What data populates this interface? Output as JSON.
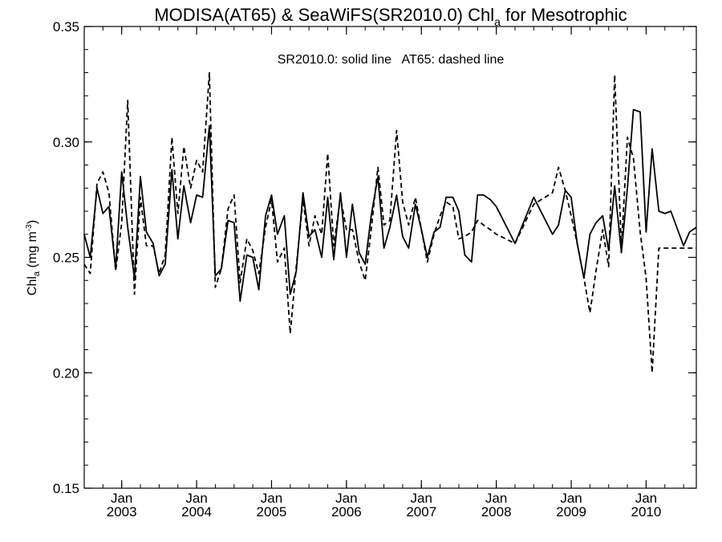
{
  "chart_data": {
    "type": "line",
    "title": {
      "prefix": "MODISA(AT65) & SeaWiFS(SR2010.0)  Chl",
      "subscript": "a",
      "suffix": " for Mesotrophic"
    },
    "annotation": "SR2010.0: solid line   AT65: dashed line",
    "ylabel": {
      "main": "Chl",
      "subscript": "a",
      "units": " (mg m",
      "units_sup": "-3",
      "units_close": ")"
    },
    "ylim": [
      0.15,
      0.35
    ],
    "yticks": [
      0.15,
      0.2,
      0.25,
      0.3,
      0.35
    ],
    "ytick_labels": [
      "0.15",
      "0.20",
      "0.25",
      "0.30",
      "0.35"
    ],
    "xlim": [
      2002.5,
      2010.67
    ],
    "xticks": [
      {
        "value": 2003.0,
        "month": "Jan",
        "year": "2003"
      },
      {
        "value": 2004.0,
        "month": "Jan",
        "year": "2004"
      },
      {
        "value": 2005.0,
        "month": "Jan",
        "year": "2005"
      },
      {
        "value": 2006.0,
        "month": "Jan",
        "year": "2006"
      },
      {
        "value": 2007.0,
        "month": "Jan",
        "year": "2007"
      },
      {
        "value": 2008.0,
        "month": "Jan",
        "year": "2008"
      },
      {
        "value": 2009.0,
        "month": "Jan",
        "year": "2009"
      },
      {
        "value": 2010.0,
        "month": "Jan",
        "year": "2010"
      }
    ],
    "grid": false,
    "series": [
      {
        "name": "SR2010.0",
        "style": "solid",
        "color": "#000000",
        "x": [
          2002.5,
          2002.58,
          2002.67,
          2002.75,
          2002.83,
          2002.92,
          2003.0,
          2003.08,
          2003.17,
          2003.25,
          2003.33,
          2003.42,
          2003.5,
          2003.58,
          2003.67,
          2003.75,
          2003.83,
          2003.92,
          2004.0,
          2004.08,
          2004.17,
          2004.25,
          2004.33,
          2004.42,
          2004.5,
          2004.58,
          2004.67,
          2004.75,
          2004.83,
          2004.92,
          2005.0,
          2005.08,
          2005.17,
          2005.25,
          2005.33,
          2005.42,
          2005.5,
          2005.58,
          2005.67,
          2005.75,
          2005.83,
          2005.92,
          2006.0,
          2006.08,
          2006.17,
          2006.25,
          2006.33,
          2006.42,
          2006.5,
          2006.58,
          2006.67,
          2006.75,
          2006.83,
          2006.92,
          2007.0,
          2007.08,
          2007.17,
          2007.25,
          2007.33,
          2007.42,
          2007.5,
          2007.58,
          2007.67,
          2007.75,
          2007.83,
          2007.92,
          2008.0,
          2008.25,
          2008.5,
          2008.75,
          2008.83,
          2008.92,
          2009.0,
          2009.08,
          2009.17,
          2009.25,
          2009.33,
          2009.42,
          2009.5,
          2009.58,
          2009.67,
          2009.75,
          2009.83,
          2009.92,
          2010.0,
          2010.08,
          2010.17,
          2010.25,
          2010.33,
          2010.42,
          2010.5,
          2010.58,
          2010.67
        ],
        "values": [
          0.26,
          0.25,
          0.28,
          0.269,
          0.272,
          0.245,
          0.287,
          0.263,
          0.241,
          0.285,
          0.261,
          0.256,
          0.242,
          0.247,
          0.288,
          0.258,
          0.281,
          0.265,
          0.277,
          0.276,
          0.307,
          0.242,
          0.245,
          0.266,
          0.265,
          0.231,
          0.251,
          0.25,
          0.236,
          0.268,
          0.277,
          0.26,
          0.268,
          0.234,
          0.244,
          0.278,
          0.259,
          0.262,
          0.25,
          0.276,
          0.249,
          0.278,
          0.25,
          0.273,
          0.252,
          0.247,
          0.268,
          0.285,
          0.254,
          0.263,
          0.277,
          0.259,
          0.254,
          0.273,
          0.262,
          0.25,
          0.261,
          0.263,
          0.276,
          0.276,
          0.27,
          0.251,
          0.248,
          0.277,
          0.277,
          0.275,
          0.272,
          0.256,
          0.276,
          0.26,
          0.264,
          0.279,
          0.276,
          0.256,
          0.241,
          0.26,
          0.265,
          0.268,
          0.253,
          0.281,
          0.252,
          0.28,
          0.314,
          0.313,
          0.261,
          0.297,
          0.27,
          0.269,
          0.27,
          0.262,
          0.255,
          0.261,
          0.263
        ],
        "note": "x positions in decimal years"
      },
      {
        "name": "AT65",
        "style": "dashed",
        "color": "#000000",
        "x": [
          2002.5,
          2002.58,
          2002.67,
          2002.75,
          2002.83,
          2002.92,
          2003.0,
          2003.08,
          2003.17,
          2003.25,
          2003.33,
          2003.42,
          2003.5,
          2003.58,
          2003.67,
          2003.75,
          2003.83,
          2003.92,
          2004.0,
          2004.08,
          2004.17,
          2004.25,
          2004.33,
          2004.42,
          2004.5,
          2004.58,
          2004.67,
          2004.75,
          2004.83,
          2004.92,
          2005.0,
          2005.08,
          2005.17,
          2005.25,
          2005.33,
          2005.42,
          2005.5,
          2005.58,
          2005.67,
          2005.75,
          2005.83,
          2005.92,
          2006.0,
          2006.08,
          2006.17,
          2006.25,
          2006.33,
          2006.42,
          2006.5,
          2006.58,
          2006.67,
          2006.75,
          2006.83,
          2006.92,
          2007.0,
          2007.08,
          2007.17,
          2007.25,
          2007.33,
          2007.42,
          2007.5,
          2007.58,
          2007.67,
          2007.75,
          2007.83,
          2007.92,
          2008.0,
          2008.25,
          2008.5,
          2008.75,
          2008.83,
          2008.92,
          2009.0,
          2009.08,
          2009.17,
          2009.25,
          2009.33,
          2009.42,
          2009.5,
          2009.58,
          2009.67,
          2009.75,
          2009.83,
          2009.92,
          2010.0,
          2010.08,
          2010.17,
          2010.25,
          2010.33,
          2010.42,
          2010.5,
          2010.58,
          2010.67
        ],
        "values": [
          0.247,
          0.243,
          0.282,
          0.287,
          0.278,
          0.244,
          0.265,
          0.318,
          0.234,
          0.276,
          0.255,
          0.255,
          0.243,
          0.251,
          0.302,
          0.269,
          0.298,
          0.28,
          0.292,
          0.287,
          0.33,
          0.237,
          0.245,
          0.271,
          0.277,
          0.239,
          0.258,
          0.253,
          0.243,
          0.263,
          0.275,
          0.248,
          0.254,
          0.217,
          0.246,
          0.275,
          0.255,
          0.268,
          0.26,
          0.295,
          0.255,
          0.276,
          0.262,
          0.262,
          0.248,
          0.24,
          0.262,
          0.289,
          0.264,
          0.266,
          0.305,
          0.274,
          0.264,
          0.276,
          0.262,
          0.248,
          0.26,
          0.268,
          0.274,
          0.272,
          0.258,
          0.259,
          0.261,
          0.266,
          0.264,
          0.262,
          0.26,
          0.256,
          0.273,
          0.278,
          0.289,
          0.279,
          0.268,
          0.256,
          0.241,
          0.226,
          0.244,
          0.262,
          0.246,
          0.329,
          0.254,
          0.302,
          0.293,
          0.261,
          0.241,
          0.2,
          0.254,
          0.254,
          0.254,
          0.254,
          0.254,
          0.254,
          0.254
        ],
        "note": "x positions in decimal years"
      }
    ]
  }
}
